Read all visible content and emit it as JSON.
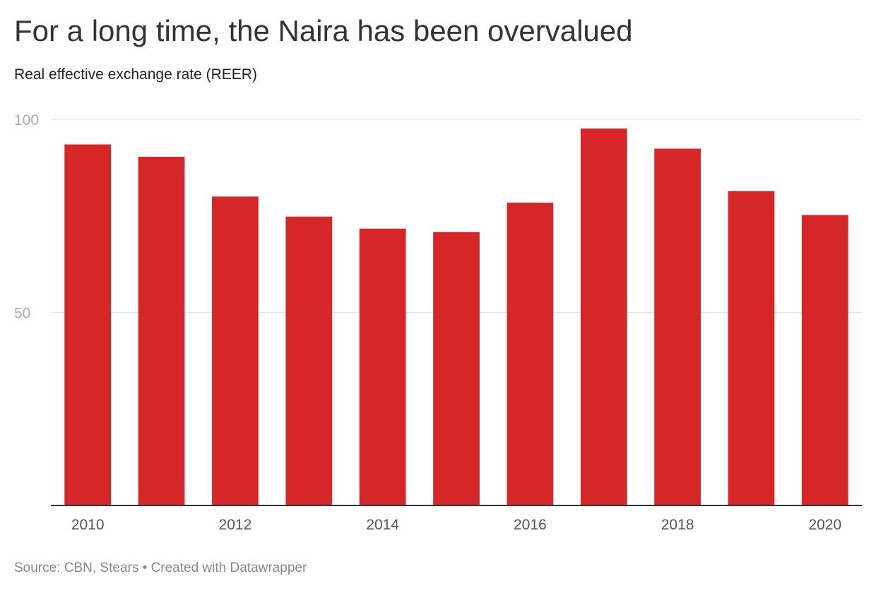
{
  "title": "For a long time, the Naira has been overvalued",
  "subtitle": "Real effective exchange rate (REER)",
  "footer": {
    "source": "Source: CBN, Stears",
    "separator": " • ",
    "credit": "Created with Datawrapper"
  },
  "chart_data": {
    "type": "bar",
    "title": "For a long time, the Naira has been overvalued",
    "subtitle": "Real effective exchange rate (REER)",
    "xlabel": "",
    "ylabel": "",
    "categories": [
      "2010",
      "2011",
      "2012",
      "2013",
      "2014",
      "2015",
      "2016",
      "2017",
      "2018",
      "2019",
      "2020"
    ],
    "values": [
      93.5,
      90.3,
      80.0,
      74.8,
      71.7,
      70.8,
      78.4,
      97.6,
      92.4,
      81.4,
      75.2
    ],
    "x_tick_labels": [
      "2010",
      "2012",
      "2014",
      "2016",
      "2018",
      "2020"
    ],
    "y_ticks": [
      50,
      100
    ],
    "ylim": [
      0,
      100
    ],
    "grid": true,
    "legend": "none",
    "bar_color": "#d62728",
    "grid_color": "#e2e2e2",
    "axis_color": "#333333"
  }
}
